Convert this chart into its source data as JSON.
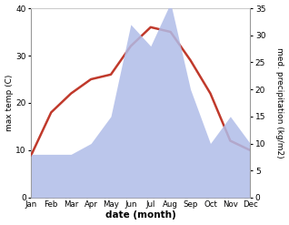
{
  "months": [
    "Jan",
    "Feb",
    "Mar",
    "Apr",
    "May",
    "Jun",
    "Jul",
    "Aug",
    "Sep",
    "Oct",
    "Nov",
    "Dec"
  ],
  "temperature": [
    9,
    18,
    22,
    25,
    26,
    32,
    36,
    35,
    29,
    22,
    12,
    10
  ],
  "precipitation": [
    8,
    8,
    8,
    10,
    15,
    32,
    28,
    36,
    20,
    10,
    15,
    10
  ],
  "temp_color": "#c0392b",
  "precip_color": "#b0bce8",
  "temp_ylim": [
    0,
    40
  ],
  "precip_ylim": [
    0,
    35
  ],
  "temp_yticks": [
    0,
    10,
    20,
    30,
    40
  ],
  "precip_yticks": [
    0,
    5,
    10,
    15,
    20,
    25,
    30,
    35
  ],
  "ylabel_left": "max temp (C)",
  "ylabel_right": "med. precipitation (kg/m2)",
  "xlabel": "date (month)",
  "background_color": "#ffffff",
  "line_width": 1.8,
  "figwidth": 3.18,
  "figheight": 2.47,
  "dpi": 100
}
